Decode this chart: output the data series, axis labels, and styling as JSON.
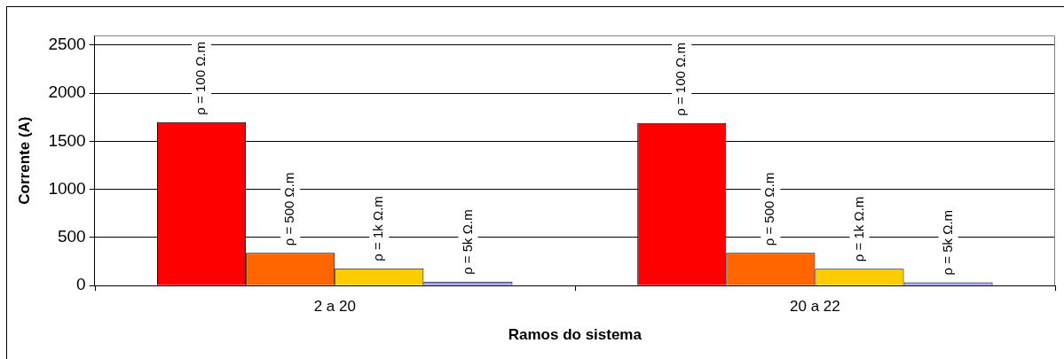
{
  "chart_data": {
    "type": "bar",
    "xlabel": "Ramos do sistema",
    "ylabel": "Corrente (A)",
    "categories": [
      "2 a 20",
      "20 a 22"
    ],
    "series": [
      {
        "name": "ρ = 100 Ω.m",
        "color": "#ff0000",
        "values": [
          1700,
          1690
        ]
      },
      {
        "name": "ρ = 500 Ω.m",
        "color": "#ff6600",
        "values": [
          340,
          340
        ]
      },
      {
        "name": "ρ = 1k Ω.m",
        "color": "#ffcc00",
        "values": [
          180,
          175
        ]
      },
      {
        "name": "ρ = 5k Ω.m",
        "color": "#9999ff",
        "values": [
          40,
          35
        ]
      }
    ],
    "ylim": [
      0,
      2600
    ],
    "yticks": [
      0,
      500,
      1000,
      1500,
      2000,
      2500
    ],
    "grid": "y",
    "legend": false
  }
}
